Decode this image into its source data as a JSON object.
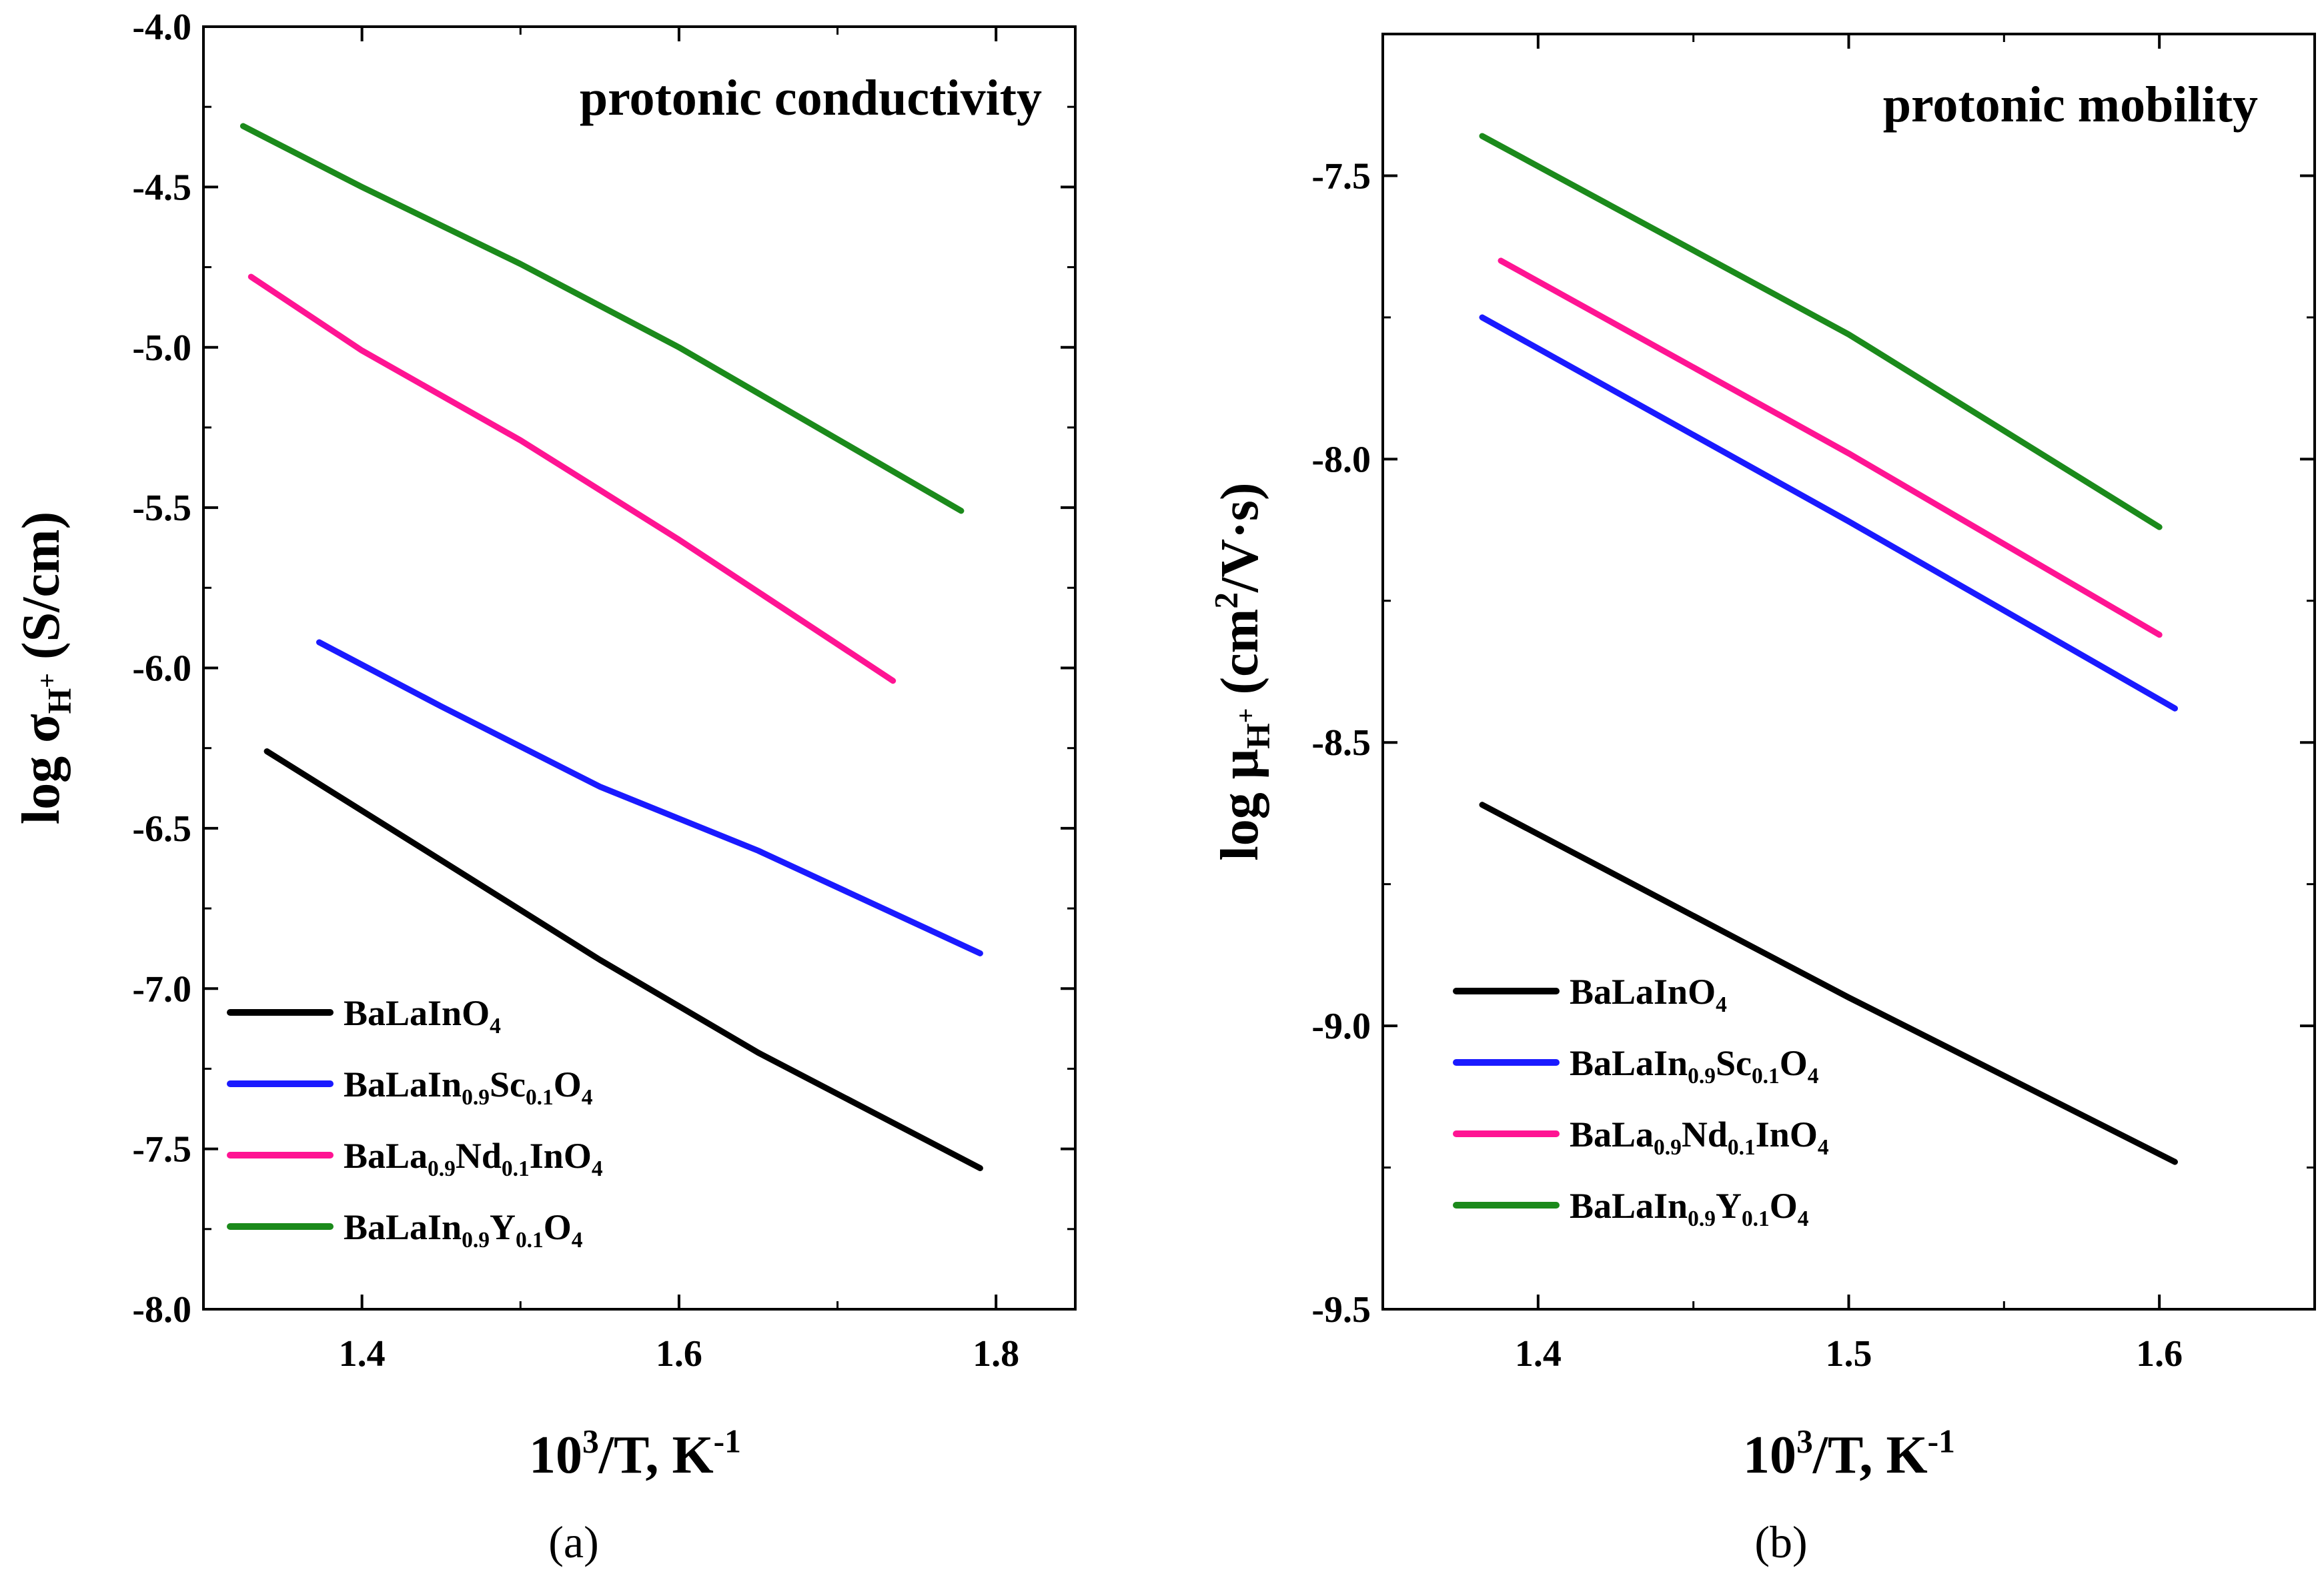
{
  "chart_data": [
    {
      "id": "a",
      "type": "line",
      "panel_label": "(a)",
      "title": "protonic conductivity",
      "xlabel": "10^3/T, K^-1",
      "ylabel": "log σ_H+ (S/cm)",
      "xlim": [
        1.3,
        1.85
      ],
      "ylim": [
        -8.0,
        -4.0
      ],
      "xticks": [
        1.4,
        1.6,
        1.8
      ],
      "xtick_labels": [
        "1.4",
        "1.6",
        "1.8"
      ],
      "yticks": [
        -8.0,
        -7.5,
        -7.0,
        -6.5,
        -6.0,
        -5.5,
        -5.0,
        -4.5,
        -4.0
      ],
      "ytick_labels": [
        "-8.0",
        "-7.5",
        "-7.0",
        "-6.5",
        "-6.0",
        "-5.5",
        "-5.0",
        "-4.5",
        "-4.0"
      ],
      "grid": false,
      "legend_position": "bottom-left",
      "series": [
        {
          "name": "BaLaInO4",
          "color": "#000000",
          "x": [
            1.34,
            1.45,
            1.55,
            1.65,
            1.79
          ],
          "y": [
            -6.26,
            -6.6,
            -6.91,
            -7.2,
            -7.56
          ]
        },
        {
          "name": "BaLaIn0.9Sc0.1O4",
          "color": "#1a1aff",
          "x": [
            1.373,
            1.45,
            1.55,
            1.65,
            1.79
          ],
          "y": [
            -5.92,
            -6.12,
            -6.37,
            -6.57,
            -6.89
          ]
        },
        {
          "name": "BaLa0.9Nd0.1InO4",
          "color": "#ff1493",
          "x": [
            1.33,
            1.4,
            1.5,
            1.6,
            1.735
          ],
          "y": [
            -4.78,
            -5.01,
            -5.29,
            -5.6,
            -6.04
          ]
        },
        {
          "name": "BaLaIn0.9Y0.1O4",
          "color": "#1b8a1b",
          "x": [
            1.325,
            1.4,
            1.5,
            1.6,
            1.778
          ],
          "y": [
            -4.31,
            -4.5,
            -4.74,
            -5.0,
            -5.51
          ]
        }
      ]
    },
    {
      "id": "b",
      "type": "line",
      "panel_label": "(b)",
      "title": "protonic mobility",
      "xlabel": "10^3/T, K^-1",
      "ylabel": "log μ_H+ (cm^2/V·s)",
      "xlim": [
        1.35,
        1.65
      ],
      "ylim": [
        -9.5,
        -7.25
      ],
      "xticks": [
        1.4,
        1.5,
        1.6
      ],
      "xtick_labels": [
        "1.4",
        "1.5",
        "1.6"
      ],
      "yticks": [
        -9.5,
        -9.0,
        -8.5,
        -8.0,
        -7.5
      ],
      "ytick_labels": [
        "-9.5",
        "-9.0",
        "-8.5",
        "-8.0",
        "-7.5"
      ],
      "grid": false,
      "legend_position": "bottom-left",
      "series": [
        {
          "name": "BaLaInO4",
          "color": "#000000",
          "x": [
            1.382,
            1.5,
            1.605
          ],
          "y": [
            -8.61,
            -8.95,
            -9.24
          ]
        },
        {
          "name": "BaLaIn0.9Sc0.1O4",
          "color": "#1a1aff",
          "x": [
            1.382,
            1.5,
            1.605
          ],
          "y": [
            -7.75,
            -8.11,
            -8.44
          ]
        },
        {
          "name": "BaLa0.9Nd0.1InO4",
          "color": "#ff1493",
          "x": [
            1.388,
            1.5,
            1.6
          ],
          "y": [
            -7.65,
            -7.99,
            -8.31
          ]
        },
        {
          "name": "BaLaIn0.9Y0.1O4",
          "color": "#1b8a1b",
          "x": [
            1.382,
            1.5,
            1.6
          ],
          "y": [
            -7.43,
            -7.78,
            -8.12
          ]
        }
      ]
    }
  ],
  "legend_labels": [
    {
      "base": "BaLaInO",
      "parts": [
        [
          "BaLaInO",
          "n"
        ],
        [
          "4",
          "s"
        ]
      ]
    },
    {
      "base": "BaLaIn0.9Sc0.1O4",
      "parts": [
        [
          "BaLaIn",
          "n"
        ],
        [
          "0.9",
          "s"
        ],
        [
          "Sc",
          "n"
        ],
        [
          "0.1",
          "s"
        ],
        [
          "O",
          "n"
        ],
        [
          "4",
          "s"
        ]
      ]
    },
    {
      "base": "BaLa0.9Nd0.1InO4",
      "parts": [
        [
          "BaLa",
          "n"
        ],
        [
          "0.9",
          "s"
        ],
        [
          "Nd",
          "n"
        ],
        [
          "0.1",
          "s"
        ],
        [
          "InO",
          "n"
        ],
        [
          "4",
          "s"
        ]
      ]
    },
    {
      "base": "BaLaIn0.9Y0.1O4",
      "parts": [
        [
          "BaLaIn",
          "n"
        ],
        [
          "0.9",
          "s"
        ],
        [
          "Y",
          "n"
        ],
        [
          "0.1",
          "s"
        ],
        [
          "O",
          "n"
        ],
        [
          "4",
          "s"
        ]
      ]
    }
  ],
  "axis_text": {
    "a_ylabel_parts": [
      [
        "log σ",
        "n"
      ],
      [
        "H",
        "s"
      ],
      [
        "+",
        "ss"
      ],
      [
        " (S/cm)",
        "n"
      ]
    ],
    "b_ylabel_parts": [
      [
        "log μ",
        "n"
      ],
      [
        "H",
        "s"
      ],
      [
        "+",
        "ss"
      ],
      [
        " (cm",
        "n"
      ],
      [
        "2",
        "p"
      ],
      [
        "/V·s)",
        "n"
      ]
    ],
    "xlabel_parts": [
      [
        "10",
        "n"
      ],
      [
        "3",
        "p"
      ],
      [
        "/T, K",
        "n"
      ],
      [
        "-1",
        "p"
      ]
    ]
  }
}
